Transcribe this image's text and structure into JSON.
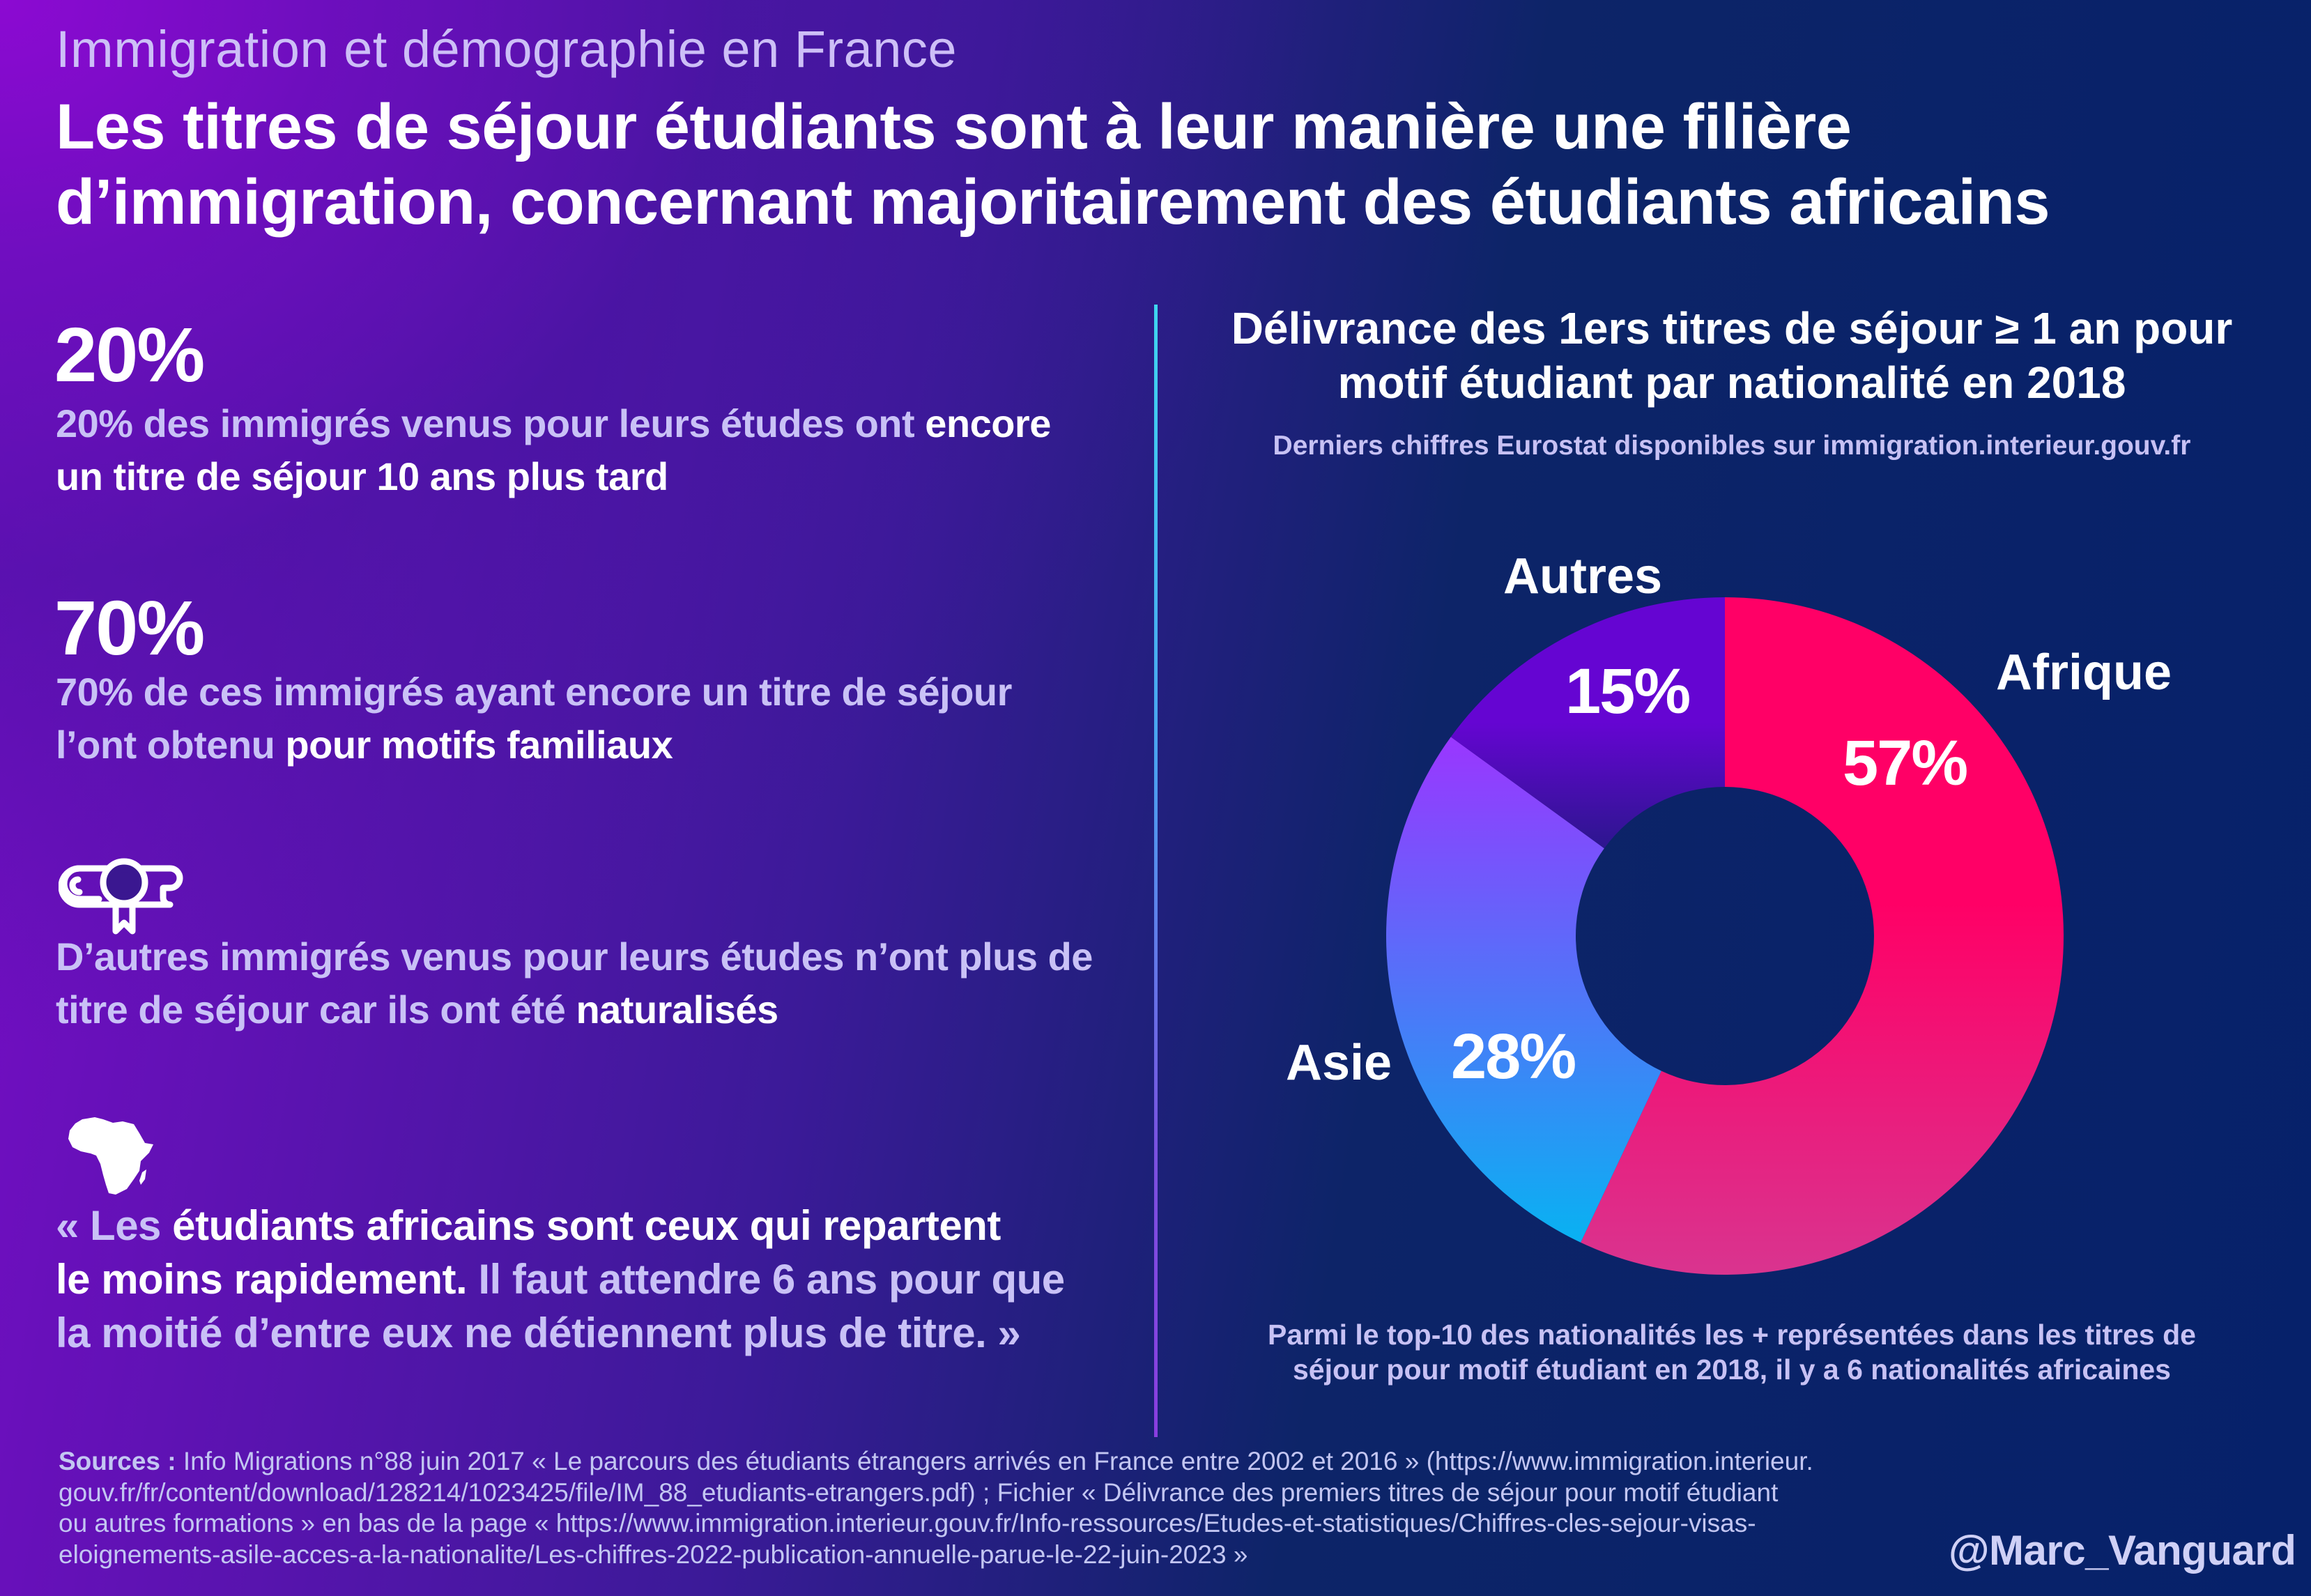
{
  "header": {
    "supertitle": "Immigration et démographie en France",
    "title_line1": "Les titres de séjour étudiants sont à leur manière une filière",
    "title_line2": "d’immigration, concernant majoritairement des étudiants africains"
  },
  "left": {
    "stat1": {
      "value": "20%",
      "line1_soft": "20% des immigrés venus pour leurs études ont ",
      "line1_em": "encore",
      "line2_em": "un titre de séjour 10 ans plus tard"
    },
    "stat2": {
      "value": "70%",
      "line1_soft": "70% de ces immigrés ayant encore un titre de séjour",
      "line2_soft": "l’ont obtenu ",
      "line2_em": "pour motifs familiaux"
    },
    "diploma": {
      "icon": "diploma-scroll-icon",
      "line1_soft": "D’autres immigrés venus pour leurs études n’ont plus de",
      "line2_soft": "titre de séjour car ils ont été ",
      "line2_em": "naturalisés"
    },
    "africa": {
      "icon": "africa-map-icon",
      "line1_soft": "« Les ",
      "line1_em": "étudiants africains sont ceux qui repartent",
      "line2_em": "le moins rapidement.",
      "line2_soft": " Il faut attendre 6 ans pour que",
      "line3_soft": "la moitié d’entre eux ne détiennent plus de titre. »"
    }
  },
  "chart_data": {
    "type": "pie",
    "variant": "donut",
    "title": "Délivrance des 1ers  titres de séjour ≥ 1 an pour motif étudiant par nationalité en 2018",
    "title_line1": "Délivrance des 1ers  titres de séjour ≥ 1 an pour",
    "title_line2": "motif étudiant par nationalité en 2018",
    "subtitle": "Derniers chiffres Eurostat disponibles sur immigration.interieur.gouv.fr",
    "categories": [
      "Afrique",
      "Asie",
      "Autres"
    ],
    "values": [
      57,
      28,
      15
    ],
    "unit": "%",
    "value_labels": [
      "57%",
      "28%",
      "15%"
    ],
    "start_angle": "12 o'clock",
    "direction": "clockwise",
    "colors": {
      "Afrique": [
        "#ff0066",
        "#d9348f"
      ],
      "Asie": [
        "#9a36ff",
        "#08b2f2"
      ],
      "Autres": [
        "#6505d2",
        "#2c168e"
      ]
    },
    "legend": "labels placed next to segments",
    "note_line1": "Parmi le top-10 des nationalités les + représentées dans les titres de",
    "note_line2": "séjour pour motif étudiant en 2018, il y a 6 nationalités africaines"
  },
  "footer": {
    "sources_label": "Sources :",
    "sources_line1": " Info Migrations n°88 juin 2017 « Le parcours des étudiants étrangers arrivés en France entre 2002 et 2016 » (https://www.immigration.interieur.",
    "sources_line2": "gouv.fr/fr/content/download/128214/1023425/file/IM_88_etudiants-etrangers.pdf) ; Fichier « Délivrance des premiers titres de séjour pour motif étudiant",
    "sources_line3": "ou autres formations » en bas de la page « https://www.immigration.interieur.gouv.fr/Info-ressources/Etudes-et-statistiques/Chiffres-cles-sejour-visas-",
    "sources_line4": "eloignements-asile-acces-a-la-nationalite/Les-chiffres-2022-publication-annuelle-parue-le-22-juin-2023 »",
    "handle": "@Marc_Vanguard"
  },
  "colors": {
    "accent_pink": "#ff0066",
    "text_lavender": "#c9c1f6",
    "background_navy": "#06216a",
    "background_purple": "#8a0cd2",
    "divider_cyan": "#3ed6f0"
  }
}
